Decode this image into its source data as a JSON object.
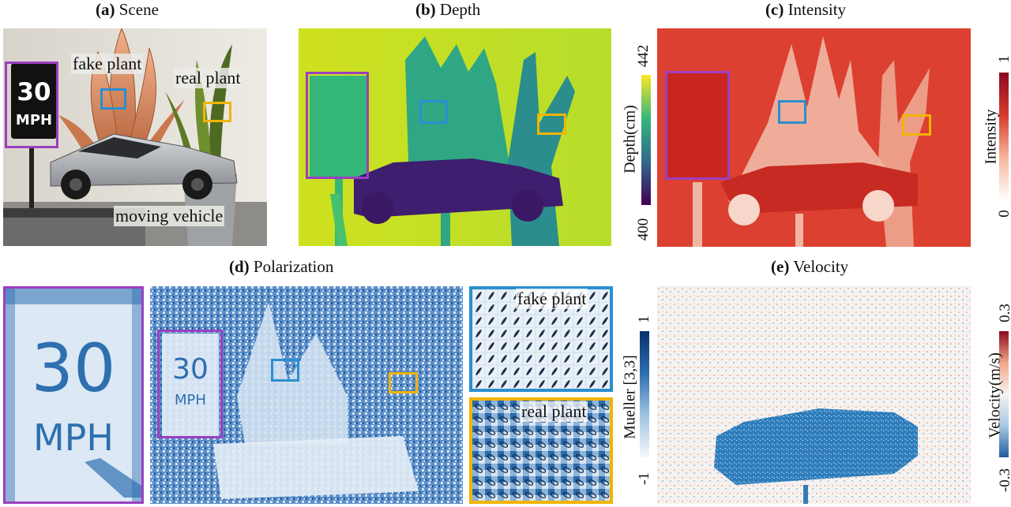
{
  "titles": {
    "a_tag": "(a)",
    "a_text": "Scene",
    "b_tag": "(b)",
    "b_text": "Depth",
    "c_tag": "(c)",
    "c_text": "Intensity",
    "d_tag": "(d)",
    "d_text": "Polarization",
    "e_tag": "(e)",
    "e_text": "Velocity"
  },
  "scene": {
    "sign_number": "30",
    "sign_unit": "MPH",
    "fake_plant_label": "fake plant",
    "real_plant_label": "real plant",
    "vehicle_label": "moving vehicle"
  },
  "depth_colorbar": {
    "label": "Depth(cm)",
    "max": "442",
    "min": "400"
  },
  "intensity_colorbar": {
    "label": "Intensity",
    "max": "1",
    "min": "0"
  },
  "mueller_colorbar": {
    "label": "Mueller [3,3]",
    "max": "1",
    "min": "-1"
  },
  "velocity_colorbar": {
    "label": "Velocity(m/s)",
    "max": "0.3",
    "min": "-0.3"
  },
  "polarization": {
    "sign_number": "30",
    "sign_unit": "MPH",
    "inset_fake": "fake plant",
    "inset_real": "real plant"
  },
  "colors": {
    "purple_box": "#9b3fc0",
    "blue_box": "#2a8fd0",
    "yellow_box": "#f2b400",
    "depth_bg": "#c8e020",
    "vehicle_depth": "#3e1e6e"
  }
}
